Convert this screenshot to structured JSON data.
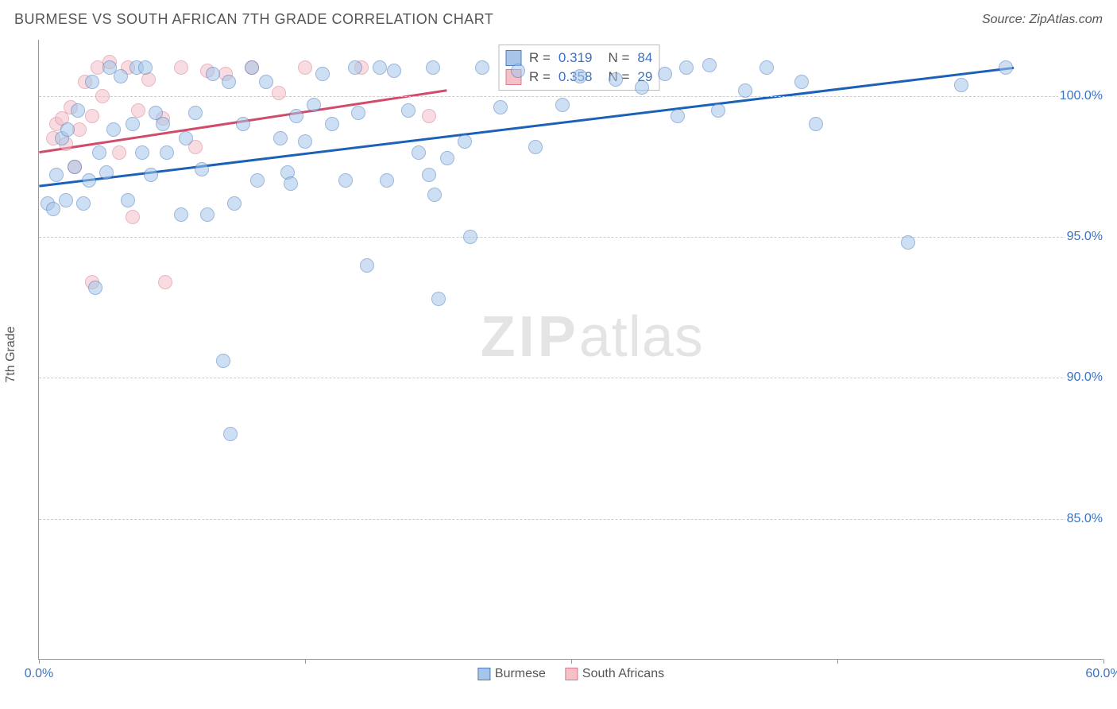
{
  "title": "BURMESE VS SOUTH AFRICAN 7TH GRADE CORRELATION CHART",
  "source": "Source: ZipAtlas.com",
  "ylabel": "7th Grade",
  "watermark_a": "ZIP",
  "watermark_b": "atlas",
  "chart": {
    "type": "scatter",
    "xlim": [
      0,
      60
    ],
    "ylim": [
      80,
      102
    ],
    "yticks": [
      85.0,
      90.0,
      95.0,
      100.0
    ],
    "ytick_labels": [
      "85.0%",
      "90.0%",
      "95.0%",
      "100.0%"
    ],
    "xtick_positions": [
      0,
      30,
      60
    ],
    "xtick_labels": [
      "0.0%",
      "",
      "60.0%"
    ],
    "xtick_minor": [
      0,
      15,
      30,
      45,
      60
    ],
    "background_color": "#ffffff",
    "grid_color": "#cccccc",
    "axis_color": "#999999",
    "marker_radius": 9,
    "marker_opacity": 0.55,
    "series": [
      {
        "name": "Burmese",
        "fill": "#a6c5e8",
        "stroke": "#4a7bc0",
        "line_color": "#1b61b8",
        "R": "0.319",
        "N": "84",
        "trend": {
          "x1": 0,
          "y1": 96.8,
          "x2": 55,
          "y2": 101.0
        },
        "points": [
          [
            0.5,
            96.2
          ],
          [
            0.8,
            96.0
          ],
          [
            1.0,
            97.2
          ],
          [
            1.3,
            98.5
          ],
          [
            1.5,
            96.3
          ],
          [
            1.6,
            98.8
          ],
          [
            2.0,
            97.5
          ],
          [
            2.2,
            99.5
          ],
          [
            2.5,
            96.2
          ],
          [
            2.8,
            97.0
          ],
          [
            3.0,
            100.5
          ],
          [
            3.2,
            93.2
          ],
          [
            3.4,
            98.0
          ],
          [
            3.8,
            97.3
          ],
          [
            4.0,
            101.0
          ],
          [
            4.2,
            98.8
          ],
          [
            4.6,
            100.7
          ],
          [
            5.0,
            96.3
          ],
          [
            5.3,
            99.0
          ],
          [
            5.5,
            101.0
          ],
          [
            5.8,
            98.0
          ],
          [
            6.0,
            101.0
          ],
          [
            6.3,
            97.2
          ],
          [
            6.6,
            99.4
          ],
          [
            7.0,
            99.0
          ],
          [
            7.2,
            98.0
          ],
          [
            8.0,
            95.8
          ],
          [
            8.3,
            98.5
          ],
          [
            8.8,
            99.4
          ],
          [
            9.2,
            97.4
          ],
          [
            9.5,
            95.8
          ],
          [
            9.8,
            100.8
          ],
          [
            10.4,
            90.6
          ],
          [
            10.7,
            100.5
          ],
          [
            10.8,
            88.0
          ],
          [
            11.0,
            96.2
          ],
          [
            11.5,
            99.0
          ],
          [
            12.0,
            101.0
          ],
          [
            12.3,
            97.0
          ],
          [
            12.8,
            100.5
          ],
          [
            13.6,
            98.5
          ],
          [
            14.0,
            97.3
          ],
          [
            14.2,
            96.9
          ],
          [
            14.5,
            99.3
          ],
          [
            15.0,
            98.4
          ],
          [
            15.5,
            99.7
          ],
          [
            16.0,
            100.8
          ],
          [
            16.5,
            99.0
          ],
          [
            17.3,
            97.0
          ],
          [
            17.8,
            101.0
          ],
          [
            18.0,
            99.4
          ],
          [
            18.5,
            94.0
          ],
          [
            19.2,
            101.0
          ],
          [
            19.6,
            97.0
          ],
          [
            20.0,
            100.9
          ],
          [
            20.8,
            99.5
          ],
          [
            21.4,
            98.0
          ],
          [
            22.2,
            101.0
          ],
          [
            22.0,
            97.2
          ],
          [
            22.3,
            96.5
          ],
          [
            22.5,
            92.8
          ],
          [
            23.0,
            97.8
          ],
          [
            24.0,
            98.4
          ],
          [
            24.3,
            95.0
          ],
          [
            25.0,
            101.0
          ],
          [
            26.0,
            99.6
          ],
          [
            27.0,
            100.9
          ],
          [
            28.0,
            98.2
          ],
          [
            29.5,
            99.7
          ],
          [
            30.5,
            100.7
          ],
          [
            32.5,
            100.6
          ],
          [
            34.0,
            100.3
          ],
          [
            35.3,
            100.8
          ],
          [
            36.0,
            99.3
          ],
          [
            36.5,
            101.0
          ],
          [
            37.8,
            101.1
          ],
          [
            38.3,
            99.5
          ],
          [
            39.8,
            100.2
          ],
          [
            41.0,
            101.0
          ],
          [
            43.0,
            100.5
          ],
          [
            43.8,
            99.0
          ],
          [
            49.0,
            94.8
          ],
          [
            52.0,
            100.4
          ],
          [
            54.5,
            101.0
          ]
        ]
      },
      {
        "name": "South Africans",
        "fill": "#f4c0ca",
        "stroke": "#d97b90",
        "line_color": "#d14b6a",
        "R": "0.358",
        "N": "29",
        "trend": {
          "x1": 0,
          "y1": 98.0,
          "x2": 23,
          "y2": 100.2
        },
        "points": [
          [
            0.8,
            98.5
          ],
          [
            1.0,
            99.0
          ],
          [
            1.3,
            99.2
          ],
          [
            1.5,
            98.3
          ],
          [
            1.8,
            99.6
          ],
          [
            2.0,
            97.5
          ],
          [
            2.3,
            98.8
          ],
          [
            2.6,
            100.5
          ],
          [
            3.0,
            99.3
          ],
          [
            3.3,
            101.0
          ],
          [
            3.6,
            100.0
          ],
          [
            4.0,
            101.2
          ],
          [
            3.0,
            93.4
          ],
          [
            4.5,
            98.0
          ],
          [
            5.0,
            101.0
          ],
          [
            5.3,
            95.7
          ],
          [
            5.6,
            99.5
          ],
          [
            6.2,
            100.6
          ],
          [
            7.0,
            99.2
          ],
          [
            7.1,
            93.4
          ],
          [
            8.0,
            101.0
          ],
          [
            8.8,
            98.2
          ],
          [
            9.5,
            100.9
          ],
          [
            10.5,
            100.8
          ],
          [
            12.0,
            101.0
          ],
          [
            13.5,
            100.1
          ],
          [
            15.0,
            101.0
          ],
          [
            18.2,
            101.0
          ],
          [
            22.0,
            99.3
          ]
        ]
      }
    ]
  },
  "legend": {
    "items": [
      {
        "label": "Burmese",
        "fill": "#a6c5e8",
        "stroke": "#4a7bc0"
      },
      {
        "label": "South Africans",
        "fill": "#f4c0ca",
        "stroke": "#d97b90"
      }
    ]
  },
  "stats_box": {
    "rows": [
      {
        "fill": "#a6c5e8",
        "stroke": "#4a7bc0",
        "r_label": "R =",
        "r_val": "0.319",
        "n_label": "N =",
        "n_val": "84"
      },
      {
        "fill": "#f4c0ca",
        "stroke": "#d97b90",
        "r_label": "R =",
        "r_val": "0.358",
        "n_label": "N =",
        "n_val": "29"
      }
    ]
  }
}
